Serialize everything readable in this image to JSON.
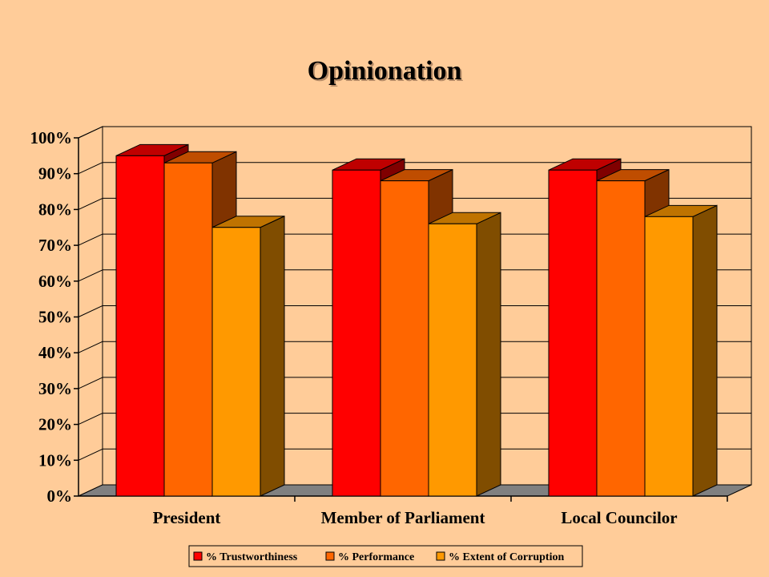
{
  "chart_data": {
    "type": "bar",
    "title": "Opinionation",
    "categories": [
      "President",
      "Member of Parliament",
      "Local Councilor"
    ],
    "series": [
      {
        "name": "% Trustworthiness",
        "values": [
          95,
          91,
          91
        ],
        "color": "#FF0000"
      },
      {
        "name": "% Performance",
        "values": [
          93,
          88,
          88
        ],
        "color": "#FF6600"
      },
      {
        "name": "% Extent of Corruption",
        "values": [
          75,
          76,
          78
        ],
        "color": "#FF9900"
      }
    ],
    "ylim": [
      0,
      100
    ],
    "yticks": [
      "0%",
      "10%",
      "20%",
      "30%",
      "40%",
      "50%",
      "60%",
      "70%",
      "80%",
      "90%",
      "100%"
    ],
    "grid": true,
    "legend_position": "bottom",
    "style": "3d-clustered-column"
  }
}
